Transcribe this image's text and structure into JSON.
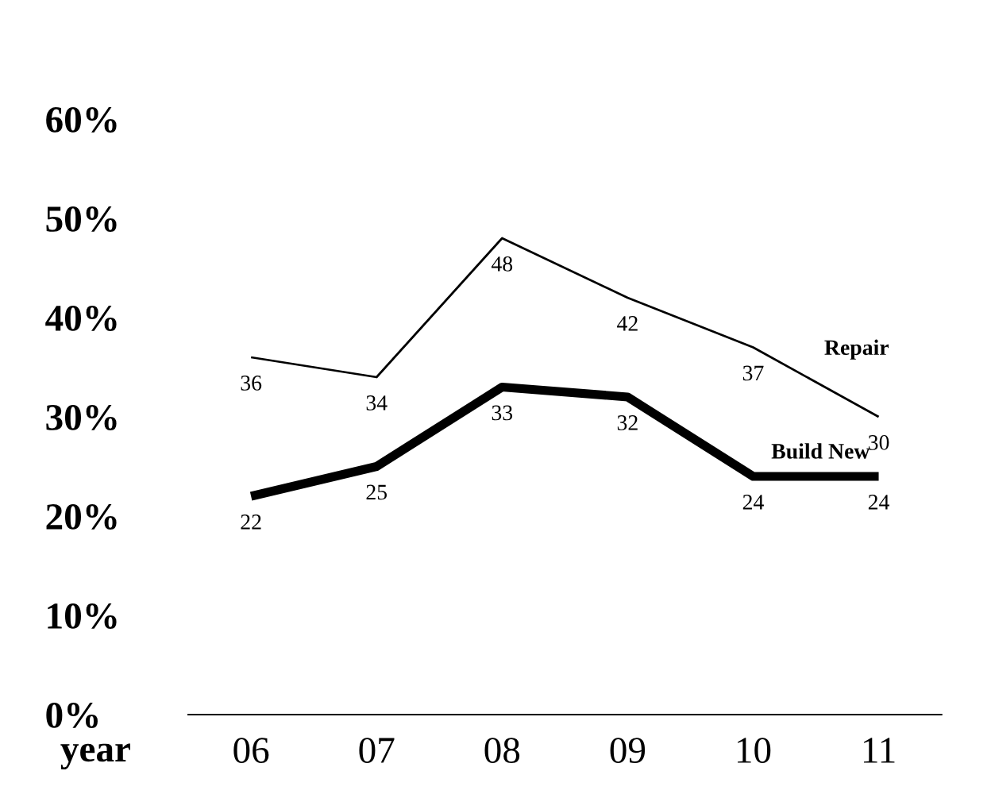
{
  "chart_data": {
    "type": "line",
    "xlabel": "year",
    "categories": [
      "06",
      "07",
      "08",
      "09",
      "10",
      "11"
    ],
    "series": [
      {
        "name": "Repair",
        "color": "#000000",
        "values": [
          36,
          34,
          48,
          42,
          37,
          30
        ]
      },
      {
        "name": "Build New",
        "color": "#000000",
        "values": [
          22,
          25,
          33,
          32,
          24,
          24
        ]
      }
    ],
    "ylim": [
      0,
      60
    ],
    "yticks": [
      {
        "value": 0,
        "label": "0%"
      },
      {
        "value": 10,
        "label": "10%"
      },
      {
        "value": 20,
        "label": "20%"
      },
      {
        "value": 30,
        "label": "30%"
      },
      {
        "value": 40,
        "label": "40%"
      },
      {
        "value": 50,
        "label": "50%"
      },
      {
        "value": 60,
        "label": "60%"
      }
    ],
    "data_labels": true,
    "grid": false,
    "legend": false,
    "marker": "none"
  }
}
